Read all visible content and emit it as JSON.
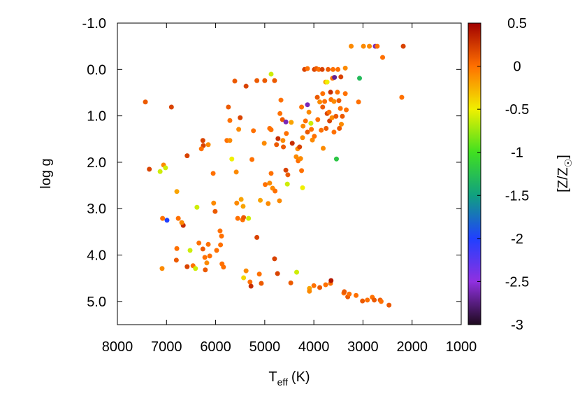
{
  "chart_data": {
    "type": "scatter",
    "xlabel": "T",
    "xlabel_sub": "eff",
    "xlabel_unit": "(K)",
    "ylabel": "log g",
    "xlim": [
      8000,
      1000
    ],
    "xticks": [
      8000,
      7000,
      6000,
      5000,
      4000,
      3000,
      2000,
      1000
    ],
    "ylim": [
      -1,
      5.5
    ],
    "yticks": [
      {
        "value": -1,
        "label": "-1.0"
      },
      {
        "value": 0,
        "label": "0.0"
      },
      {
        "value": 1,
        "label": "1.0"
      },
      {
        "value": 2,
        "label": "2.0"
      },
      {
        "value": 3,
        "label": "3.0"
      },
      {
        "value": 4,
        "label": "4.0"
      },
      {
        "value": 5,
        "label": "5.0"
      }
    ],
    "colorbar": {
      "label": "[Z/Z",
      "label_sub": "☉",
      "label_end": "]",
      "zlim": [
        -3,
        0.5
      ],
      "ticks": [
        0.5,
        0,
        -0.5,
        -1,
        -1.5,
        -2,
        -2.5,
        -3
      ],
      "colors": [
        "#1e0a1e",
        "#9030e0",
        "#2040ff",
        "#10a080",
        "#40e020",
        "#f0f000",
        "#ff7000",
        "#a00000"
      ]
    },
    "x": [
      7430,
      6900,
      7350,
      7130,
      7060,
      7020,
      6990,
      7080,
      7090,
      6790,
      6760,
      6660,
      6690,
      6580,
      6790,
      6800,
      6580,
      6460,
      6520,
      6380,
      6410,
      6260,
      6250,
      6150,
      6290,
      6340,
      6260,
      6220,
      6210,
      6180,
      6150,
      6120,
      6050,
      6040,
      6010,
      5980,
      5910,
      5880,
      5900,
      5840,
      5870,
      5740,
      5710,
      5770,
      5710,
      5670,
      5610,
      5580,
      5570,
      5550,
      5500,
      5530,
      5480,
      5440,
      5450,
      5430,
      5380,
      5380,
      5430,
      5330,
      5300,
      5280,
      5260,
      5230,
      5160,
      5160,
      5110,
      5090,
      5070,
      5000,
      5010,
      4990,
      4930,
      4900,
      4870,
      4870,
      4870,
      4900,
      4840,
      4800,
      4760,
      4790,
      4730,
      4800,
      4740,
      4700,
      4670,
      4690,
      4640,
      4620,
      4630,
      4570,
      4570,
      4530,
      4560,
      4540,
      4470,
      4460,
      4440,
      4360,
      4350,
      4330,
      4320,
      4290,
      4270,
      4250,
      4230,
      4230,
      4250,
      4220,
      4190,
      4170,
      4130,
      4130,
      4100,
      4130,
      4090,
      4090,
      4060,
      4050,
      4030,
      4000,
      3990,
      3990,
      3950,
      3930,
      3920,
      3900,
      3880,
      3880,
      3850,
      3830,
      3820,
      3820,
      3810,
      3780,
      3760,
      3760,
      3750,
      3730,
      3730,
      3710,
      3690,
      3680,
      3660,
      3660,
      3650,
      3650,
      3630,
      3620,
      3610,
      3590,
      3590,
      3580,
      3550,
      3540,
      3520,
      3510,
      3490,
      3480,
      3460,
      3450,
      3440,
      3420,
      3390,
      3380,
      3360,
      3360,
      3340,
      3310,
      3280,
      3240,
      3140,
      3090,
      3070,
      3010,
      2990,
      2910,
      2870,
      2810,
      2750,
      2710,
      2650,
      2630,
      2600,
      2470,
      2210,
      2180,
      2770
    ],
    "y": [
      0.7,
      0.81,
      2.15,
      2.2,
      2.06,
      2.12,
      3.25,
      3.21,
      4.29,
      2.63,
      3.21,
      3.36,
      3.3,
      1.86,
      3.86,
      4.11,
      4.25,
      4.23,
      3.9,
      2.97,
      4.29,
      1.53,
      1.64,
      1.62,
      1.71,
      3.74,
      3.87,
      4.05,
      4.32,
      4.17,
      3.77,
      4.02,
      2.24,
      2.88,
      3.06,
      3.9,
      3.48,
      3.59,
      3.78,
      4.26,
      4.19,
      0.81,
      1.1,
      1.53,
      1.53,
      1.93,
      0.25,
      2.21,
      2.88,
      3.21,
      1.04,
      1.29,
      2.8,
      2.95,
      3.24,
      3.19,
      0.36,
      4.34,
      4.49,
      3.21,
      4.58,
      4.67,
      1.94,
      1.32,
      0.24,
      3.62,
      4.41,
      2.82,
      4.61,
      0.24,
      1.59,
      2.48,
      2.89,
      1.27,
      0.1,
      1.3,
      2.24,
      2.45,
      2.56,
      0.24,
      1.62,
      2.62,
      1.49,
      4.08,
      4.4,
      2.83,
      0.66,
      0.95,
      1.08,
      1.67,
      1.53,
      1.13,
      2.17,
      2.27,
      1.38,
      2.47,
      4.6,
      1.14,
      1.59,
      1.88,
      4.37,
      1.71,
      1.97,
      1.67,
      1.92,
      0.81,
      2.55,
      1.47,
      2.18,
      1.22,
      0.0,
      1.11,
      0.76,
      1.35,
      0.92,
      -0.02,
      4.72,
      4.78,
      1.16,
      1.29,
      1.52,
      4.66,
      1.44,
      0.0,
      -0.02,
      0.6,
      1.08,
      0.0,
      4.7,
      0.7,
      1.31,
      0.0,
      0.52,
      0.81,
      1.7,
      0.69,
      4.64,
      0.27,
      1.27,
      0.95,
      0.27,
      0.0,
      0.92,
      1.11,
      4.61,
      0.49,
      4.55,
      0.65,
      1.04,
      0.19,
      0.0,
      1.35,
      0.69,
      0.17,
      1.01,
      1.93,
      0.49,
      0.0,
      0.67,
      1.27,
      0.84,
      0.16,
      1.18,
      1.01,
      4.82,
      4.79,
      -0.03,
      0.52,
      0.87,
      4.9,
      4.84,
      -0.5,
      4.87,
      0.7,
      0.19,
      4.99,
      -0.5,
      4.97,
      -0.5,
      4.91,
      -0.5,
      -0.5,
      4.97,
      5.0,
      -0.26,
      5.08,
      0.6,
      -0.5,
      4.97
    ],
    "z": [
      0.1,
      0.2,
      0.2,
      -0.6,
      -0.1,
      -0.6,
      -2.0,
      0,
      -0.1,
      -0.2,
      0,
      0.3,
      -0.1,
      0.2,
      0,
      0.1,
      0.2,
      0,
      -0.6,
      -0.6,
      -0.6,
      0.2,
      0.2,
      -0.1,
      0,
      0,
      0.1,
      0,
      0.1,
      -0.1,
      0,
      0,
      0,
      -0.1,
      0.1,
      0,
      0,
      0,
      0,
      0,
      0,
      0.1,
      0,
      0,
      -0.1,
      -0.5,
      0.1,
      -0.1,
      -0.1,
      0,
      0.2,
      -0.1,
      -0.2,
      -0.2,
      0,
      0.1,
      0.2,
      -0.1,
      -0.4,
      -0.6,
      0,
      0.3,
      0,
      0,
      0.1,
      0.2,
      0,
      -0.2,
      0.1,
      0.1,
      -0.1,
      0,
      -0.1,
      0,
      -0.6,
      0,
      0,
      -0.1,
      -0.1,
      0.1,
      0.1,
      0,
      0.3,
      0.2,
      0.2,
      -0.1,
      0,
      0,
      0.1,
      0.1,
      -0.1,
      -2.6,
      0.2,
      0.1,
      0,
      -0.6,
      0.1,
      -0.2,
      0.3,
      -0.1,
      -0.6,
      -0.1,
      0,
      0.2,
      -0.1,
      0,
      -0.5,
      -0.1,
      0,
      -0.1,
      0.2,
      0,
      -2.6,
      0.1,
      -0.1,
      0,
      -0.2,
      -0.1,
      -0.6,
      0,
      -0.1,
      0,
      0,
      0.2,
      0.1,
      0.1,
      0,
      0,
      0.1,
      -0.1,
      0,
      0.2,
      0,
      0.1,
      -0.1,
      0,
      0,
      -0.2,
      0.1,
      0.2,
      -0.5,
      0.1,
      0,
      0.2,
      0,
      0.3,
      0.4,
      0,
      -0.1,
      0,
      0,
      0,
      -0.1,
      -2.7,
      0.1,
      -1.2,
      0,
      0,
      0.1,
      0.1,
      0,
      0.2,
      -0.1,
      0.1,
      0,
      0.1,
      -0.1,
      0,
      0,
      0.1,
      0,
      -0.1,
      0,
      0,
      -1.3,
      0.1,
      -0.1,
      0,
      -0.1,
      0,
      -2.6,
      0,
      0.1,
      0,
      0,
      0.1,
      0,
      0.2,
      0.1
    ]
  }
}
